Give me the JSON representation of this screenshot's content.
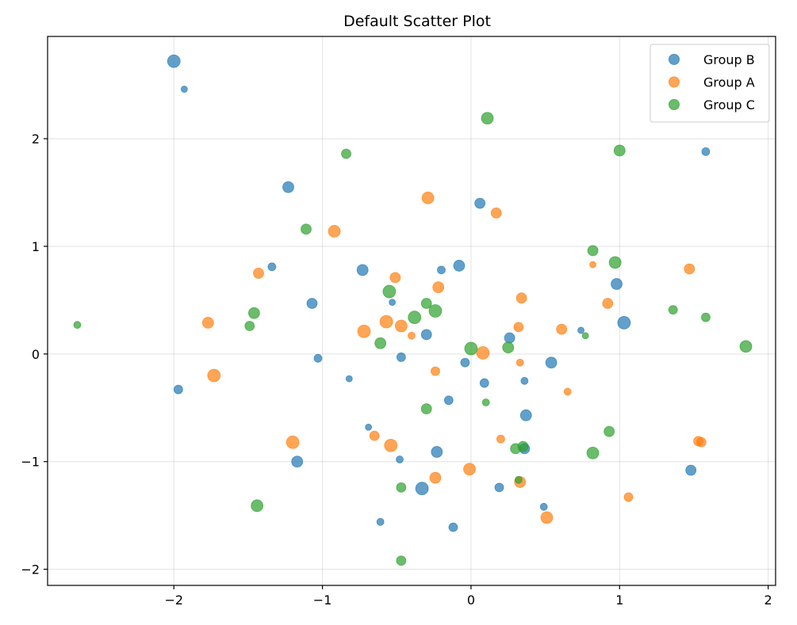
{
  "chart_data": {
    "type": "scatter",
    "title": "Default Scatter Plot",
    "xlabel": "",
    "ylabel": "",
    "xlim": [
      -2.85,
      2.05
    ],
    "ylim": [
      -2.15,
      2.95
    ],
    "xticks": [
      -2,
      -1,
      0,
      1,
      2
    ],
    "yticks": [
      -2,
      -1,
      0,
      1,
      2
    ],
    "xtick_labels": [
      "−2",
      "−1",
      "0",
      "1",
      "2"
    ],
    "ytick_labels": [
      "−2",
      "−1",
      "0",
      "1",
      "2"
    ],
    "grid": true,
    "legend_position": "top-right",
    "series": [
      {
        "name": "Group B",
        "color": "#1f77b4",
        "points": [
          {
            "x": -2.0,
            "y": 2.72,
            "s": 8
          },
          {
            "x": -1.93,
            "y": 2.46,
            "s": 4
          },
          {
            "x": -1.23,
            "y": 1.55,
            "s": 7
          },
          {
            "x": -1.34,
            "y": 0.81,
            "s": 5
          },
          {
            "x": -1.07,
            "y": 0.47,
            "s": 6.5
          },
          {
            "x": -1.03,
            "y": -0.04,
            "s": 5
          },
          {
            "x": -0.82,
            "y": -0.23,
            "s": 4
          },
          {
            "x": -1.97,
            "y": -0.33,
            "s": 5.5
          },
          {
            "x": -1.17,
            "y": -1.0,
            "s": 7
          },
          {
            "x": -0.73,
            "y": 0.78,
            "s": 7
          },
          {
            "x": -0.53,
            "y": 0.48,
            "s": 4
          },
          {
            "x": -0.47,
            "y": -0.03,
            "s": 5.5
          },
          {
            "x": -0.3,
            "y": 0.18,
            "s": 6.5
          },
          {
            "x": -0.2,
            "y": 0.78,
            "s": 5
          },
          {
            "x": -0.08,
            "y": 0.82,
            "s": 7
          },
          {
            "x": 0.06,
            "y": 1.4,
            "s": 6.5
          },
          {
            "x": -0.04,
            "y": -0.08,
            "s": 5.5
          },
          {
            "x": -0.15,
            "y": -0.43,
            "s": 5.5
          },
          {
            "x": 0.09,
            "y": -0.27,
            "s": 5.5
          },
          {
            "x": 0.26,
            "y": 0.15,
            "s": 6.5
          },
          {
            "x": 0.36,
            "y": -0.25,
            "s": 4.5
          },
          {
            "x": 0.37,
            "y": -0.57,
            "s": 7
          },
          {
            "x": 0.54,
            "y": -0.08,
            "s": 7
          },
          {
            "x": 0.74,
            "y": 0.22,
            "s": 4
          },
          {
            "x": 0.98,
            "y": 0.65,
            "s": 7
          },
          {
            "x": 1.03,
            "y": 0.29,
            "s": 8
          },
          {
            "x": 1.58,
            "y": 1.88,
            "s": 5
          },
          {
            "x": -0.69,
            "y": -0.68,
            "s": 4
          },
          {
            "x": -0.48,
            "y": -0.98,
            "s": 4.5
          },
          {
            "x": -0.23,
            "y": -0.91,
            "s": 7
          },
          {
            "x": -0.33,
            "y": -1.25,
            "s": 8
          },
          {
            "x": -0.61,
            "y": -1.56,
            "s": 4.5
          },
          {
            "x": -0.12,
            "y": -1.61,
            "s": 5.5
          },
          {
            "x": 0.19,
            "y": -1.24,
            "s": 5.5
          },
          {
            "x": 0.36,
            "y": -0.88,
            "s": 6.5
          },
          {
            "x": 0.49,
            "y": -1.42,
            "s": 4.5
          },
          {
            "x": 1.48,
            "y": -1.08,
            "s": 6.5
          }
        ]
      },
      {
        "name": "Group A",
        "color": "#ff7f0e",
        "points": [
          {
            "x": -0.29,
            "y": 1.45,
            "s": 7.5
          },
          {
            "x": -0.92,
            "y": 1.14,
            "s": 7.5
          },
          {
            "x": 0.17,
            "y": 1.31,
            "s": 6.5
          },
          {
            "x": -1.43,
            "y": 0.75,
            "s": 6.5
          },
          {
            "x": -0.51,
            "y": 0.71,
            "s": 6.5
          },
          {
            "x": -0.22,
            "y": 0.62,
            "s": 7
          },
          {
            "x": 0.34,
            "y": 0.52,
            "s": 6.5
          },
          {
            "x": -1.77,
            "y": 0.29,
            "s": 7
          },
          {
            "x": -0.72,
            "y": 0.21,
            "s": 8
          },
          {
            "x": -0.57,
            "y": 0.3,
            "s": 8
          },
          {
            "x": -0.47,
            "y": 0.26,
            "s": 7.5
          },
          {
            "x": -0.4,
            "y": 0.17,
            "s": 4.5
          },
          {
            "x": 0.32,
            "y": 0.25,
            "s": 6
          },
          {
            "x": 0.08,
            "y": 0.01,
            "s": 8
          },
          {
            "x": 0.61,
            "y": 0.23,
            "s": 6.5
          },
          {
            "x": 0.82,
            "y": 0.83,
            "s": 4
          },
          {
            "x": 0.92,
            "y": 0.47,
            "s": 6.5
          },
          {
            "x": 1.47,
            "y": 0.79,
            "s": 6.5
          },
          {
            "x": -1.73,
            "y": -0.2,
            "s": 8
          },
          {
            "x": -0.24,
            "y": -0.16,
            "s": 5.5
          },
          {
            "x": 0.33,
            "y": -0.08,
            "s": 4.5
          },
          {
            "x": 0.65,
            "y": -0.35,
            "s": 4.5
          },
          {
            "x": -0.65,
            "y": -0.76,
            "s": 6
          },
          {
            "x": -1.2,
            "y": -0.82,
            "s": 8
          },
          {
            "x": -0.54,
            "y": -0.85,
            "s": 8
          },
          {
            "x": 0.2,
            "y": -0.79,
            "s": 5
          },
          {
            "x": -0.24,
            "y": -1.15,
            "s": 7
          },
          {
            "x": -0.01,
            "y": -1.07,
            "s": 7.5
          },
          {
            "x": 0.33,
            "y": -1.19,
            "s": 7
          },
          {
            "x": 1.53,
            "y": -0.81,
            "s": 6
          },
          {
            "x": 1.55,
            "y": -0.82,
            "s": 6
          },
          {
            "x": 1.06,
            "y": -1.33,
            "s": 5.5
          },
          {
            "x": 0.51,
            "y": -1.52,
            "s": 7.5
          }
        ]
      },
      {
        "name": "Group C",
        "color": "#2ca02c",
        "points": [
          {
            "x": 0.11,
            "y": 2.19,
            "s": 7.5
          },
          {
            "x": -0.84,
            "y": 1.86,
            "s": 6
          },
          {
            "x": 1.0,
            "y": 1.89,
            "s": 7
          },
          {
            "x": -1.11,
            "y": 1.16,
            "s": 6.5
          },
          {
            "x": 0.82,
            "y": 0.96,
            "s": 6.5
          },
          {
            "x": 0.97,
            "y": 0.85,
            "s": 7.5
          },
          {
            "x": -0.55,
            "y": 0.58,
            "s": 8
          },
          {
            "x": -0.3,
            "y": 0.47,
            "s": 6.5
          },
          {
            "x": -0.24,
            "y": 0.4,
            "s": 8
          },
          {
            "x": -0.38,
            "y": 0.34,
            "s": 8
          },
          {
            "x": -1.46,
            "y": 0.38,
            "s": 7
          },
          {
            "x": -1.49,
            "y": 0.26,
            "s": 6
          },
          {
            "x": -2.65,
            "y": 0.27,
            "s": 4.5
          },
          {
            "x": -0.61,
            "y": 0.1,
            "s": 7
          },
          {
            "x": 0.0,
            "y": 0.05,
            "s": 8
          },
          {
            "x": 0.25,
            "y": 0.06,
            "s": 7
          },
          {
            "x": 0.77,
            "y": 0.17,
            "s": 4
          },
          {
            "x": 1.36,
            "y": 0.41,
            "s": 5.5
          },
          {
            "x": 1.58,
            "y": 0.34,
            "s": 5.5
          },
          {
            "x": 1.85,
            "y": 0.07,
            "s": 7.5
          },
          {
            "x": 0.1,
            "y": -0.45,
            "s": 4.5
          },
          {
            "x": -0.3,
            "y": -0.51,
            "s": 6.5
          },
          {
            "x": 0.35,
            "y": -0.86,
            "s": 6.5
          },
          {
            "x": 0.3,
            "y": -0.88,
            "s": 6.5
          },
          {
            "x": 0.93,
            "y": -0.72,
            "s": 6.5
          },
          {
            "x": 0.82,
            "y": -0.92,
            "s": 7.5
          },
          {
            "x": 0.32,
            "y": -1.17,
            "s": 4.5
          },
          {
            "x": -0.47,
            "y": -1.24,
            "s": 6
          },
          {
            "x": -1.44,
            "y": -1.41,
            "s": 7.5
          },
          {
            "x": -0.47,
            "y": -1.92,
            "s": 6
          }
        ]
      }
    ],
    "alpha": 0.7
  }
}
